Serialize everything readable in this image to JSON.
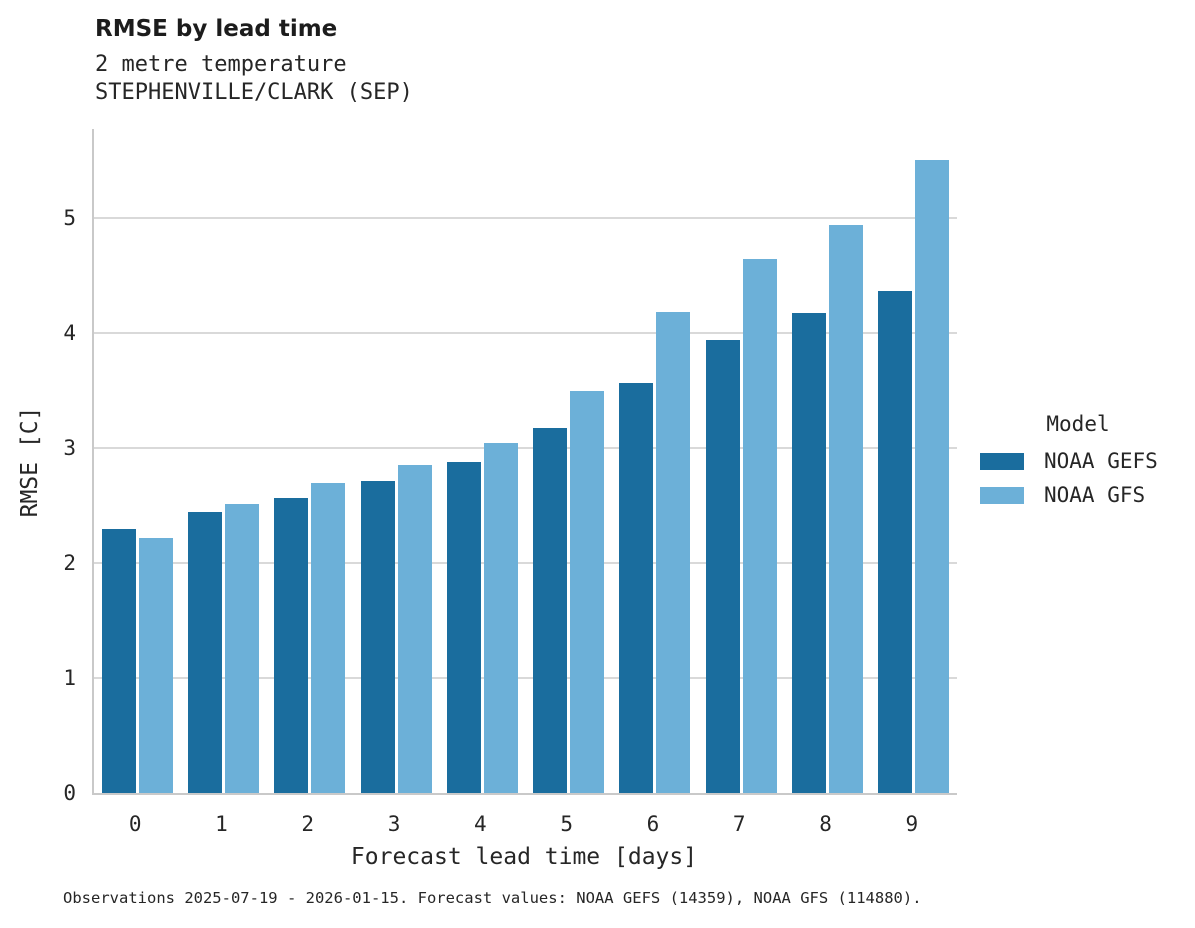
{
  "header": {
    "title": "RMSE by lead time",
    "subtitle1": "2 metre temperature",
    "subtitle2": "STEPHENVILLE/CLARK (SEP)"
  },
  "chart_data": {
    "type": "bar",
    "title": "RMSE by lead time",
    "subtitle": [
      "2 metre temperature",
      "STEPHENVILLE/CLARK (SEP)"
    ],
    "categories": [
      "0",
      "1",
      "2",
      "3",
      "4",
      "5",
      "6",
      "7",
      "8",
      "9"
    ],
    "series": [
      {
        "name": "NOAA GEFS",
        "color": "#1a6d9e",
        "values": [
          2.29,
          2.44,
          2.56,
          2.71,
          2.88,
          3.17,
          3.56,
          3.94,
          4.17,
          4.36
        ]
      },
      {
        "name": "NOAA GFS",
        "color": "#6cb0d8",
        "values": [
          2.22,
          2.51,
          2.69,
          2.85,
          3.04,
          3.49,
          4.18,
          4.64,
          4.94,
          5.5
        ]
      }
    ],
    "xlabel": "Forecast lead time [days]",
    "ylabel": "RMSE [C]",
    "ylim": [
      0,
      5.77
    ],
    "yticks": [
      0,
      1,
      2,
      3,
      4,
      5
    ],
    "grid": "horizontal",
    "legend_position": "right",
    "legend_title": "Model"
  },
  "colors": {
    "gefs_bar": "#1a6d9e",
    "gfs_bar": "#6cb0d8",
    "gridline": "#d9d9d9",
    "spine": "#c9c9c9",
    "text": "#262626"
  },
  "footer": {
    "caption": "Observations 2025-07-19 - 2026-01-15. Forecast values: NOAA GEFS (14359), NOAA GFS (114880)."
  }
}
